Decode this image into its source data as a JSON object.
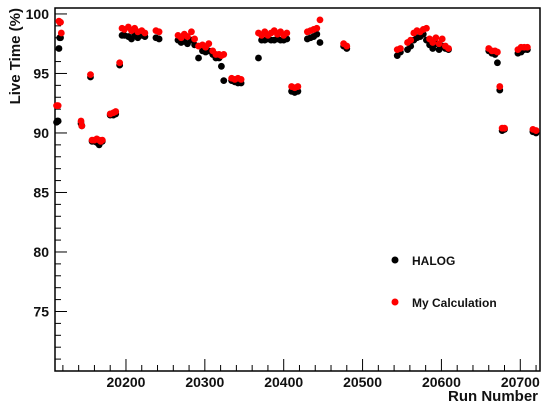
{
  "chart_data": {
    "type": "scatter",
    "title": "",
    "xlabel": "Run Number",
    "ylabel": "Live Time (%)",
    "xlim": [
      20110,
      20725
    ],
    "ylim": [
      70,
      100.5
    ],
    "xticks": [
      20200,
      20300,
      20400,
      20500,
      20600,
      20700
    ],
    "yticks": [
      75,
      80,
      85,
      90,
      95,
      100
    ],
    "grid": false,
    "legend_position": "lower-right",
    "series": [
      {
        "name": "HALOG",
        "color": "#000000",
        "points": [
          [
            20112,
            90.9
          ],
          [
            20113,
            91.0
          ],
          [
            20114,
            91.0
          ],
          [
            20115,
            97.1
          ],
          [
            20116,
            98.0
          ],
          [
            20117,
            98.0
          ],
          [
            20143,
            90.8
          ],
          [
            20144,
            90.6
          ],
          [
            20155,
            94.7
          ],
          [
            20157,
            89.3
          ],
          [
            20160,
            89.3
          ],
          [
            20163,
            89.2
          ],
          [
            20166,
            89.0
          ],
          [
            20168,
            89.3
          ],
          [
            20170,
            89.3
          ],
          [
            20180,
            91.5
          ],
          [
            20184,
            91.5
          ],
          [
            20187,
            91.6
          ],
          [
            20192,
            95.7
          ],
          [
            20195,
            98.2
          ],
          [
            20198,
            98.2
          ],
          [
            20203,
            98.1
          ],
          [
            20207,
            97.9
          ],
          [
            20211,
            98.3
          ],
          [
            20215,
            98.0
          ],
          [
            20220,
            98.2
          ],
          [
            20224,
            98.1
          ],
          [
            20238,
            98.0
          ],
          [
            20242,
            97.9
          ],
          [
            20266,
            97.8
          ],
          [
            20270,
            97.6
          ],
          [
            20274,
            97.7
          ],
          [
            20278,
            97.5
          ],
          [
            20283,
            97.8
          ],
          [
            20287,
            97.4
          ],
          [
            20292,
            96.3
          ],
          [
            20297,
            96.9
          ],
          [
            20301,
            96.8
          ],
          [
            20305,
            96.9
          ],
          [
            20310,
            96.6
          ],
          [
            20314,
            96.3
          ],
          [
            20318,
            96.3
          ],
          [
            20321,
            95.6
          ],
          [
            20324,
            94.4
          ],
          [
            20334,
            94.4
          ],
          [
            20338,
            94.3
          ],
          [
            20342,
            94.2
          ],
          [
            20346,
            94.2
          ],
          [
            20368,
            96.3
          ],
          [
            20372,
            97.8
          ],
          [
            20376,
            97.8
          ],
          [
            20380,
            97.9
          ],
          [
            20384,
            97.8
          ],
          [
            20388,
            97.8
          ],
          [
            20392,
            97.9
          ],
          [
            20396,
            97.8
          ],
          [
            20400,
            97.8
          ],
          [
            20404,
            97.9
          ],
          [
            20410,
            93.5
          ],
          [
            20414,
            93.4
          ],
          [
            20418,
            93.5
          ],
          [
            20430,
            97.9
          ],
          [
            20434,
            98.0
          ],
          [
            20438,
            98.1
          ],
          [
            20442,
            98.3
          ],
          [
            20446,
            97.6
          ],
          [
            20476,
            97.3
          ],
          [
            20480,
            97.1
          ],
          [
            20544,
            96.5
          ],
          [
            20548,
            96.8
          ],
          [
            20557,
            97.0
          ],
          [
            20561,
            97.3
          ],
          [
            20565,
            97.8
          ],
          [
            20569,
            98.0
          ],
          [
            20573,
            98.1
          ],
          [
            20577,
            98.3
          ],
          [
            20581,
            97.8
          ],
          [
            20585,
            97.4
          ],
          [
            20589,
            97.1
          ],
          [
            20593,
            97.5
          ],
          [
            20597,
            97.0
          ],
          [
            20601,
            97.3
          ],
          [
            20605,
            97.1
          ],
          [
            20609,
            97.0
          ],
          [
            20660,
            96.9
          ],
          [
            20664,
            96.7
          ],
          [
            20668,
            96.6
          ],
          [
            20671,
            95.9
          ],
          [
            20674,
            93.6
          ],
          [
            20677,
            90.2
          ],
          [
            20680,
            90.3
          ],
          [
            20697,
            96.7
          ],
          [
            20701,
            96.8
          ],
          [
            20705,
            97.0
          ],
          [
            20709,
            97.0
          ],
          [
            20716,
            90.1
          ],
          [
            20720,
            90.0
          ]
        ]
      },
      {
        "name": "My Calculation",
        "color": "#ff0000",
        "points": [
          [
            20112,
            92.3
          ],
          [
            20113,
            92.3
          ],
          [
            20114,
            92.3
          ],
          [
            20115,
            99.4
          ],
          [
            20116,
            99.3
          ],
          [
            20117,
            99.3
          ],
          [
            20118,
            98.4
          ],
          [
            20143,
            91.0
          ],
          [
            20144,
            90.6
          ],
          [
            20155,
            94.9
          ],
          [
            20157,
            89.4
          ],
          [
            20160,
            89.4
          ],
          [
            20163,
            89.5
          ],
          [
            20166,
            89.4
          ],
          [
            20168,
            89.3
          ],
          [
            20170,
            89.4
          ],
          [
            20180,
            91.6
          ],
          [
            20184,
            91.7
          ],
          [
            20187,
            91.8
          ],
          [
            20192,
            95.9
          ],
          [
            20195,
            98.8
          ],
          [
            20198,
            98.7
          ],
          [
            20203,
            98.9
          ],
          [
            20207,
            98.6
          ],
          [
            20211,
            98.8
          ],
          [
            20215,
            98.5
          ],
          [
            20220,
            98.6
          ],
          [
            20224,
            98.4
          ],
          [
            20238,
            98.6
          ],
          [
            20242,
            98.5
          ],
          [
            20266,
            98.2
          ],
          [
            20270,
            98.0
          ],
          [
            20274,
            98.3
          ],
          [
            20278,
            98.1
          ],
          [
            20283,
            98.5
          ],
          [
            20287,
            97.9
          ],
          [
            20292,
            97.3
          ],
          [
            20297,
            97.4
          ],
          [
            20301,
            97.2
          ],
          [
            20305,
            97.5
          ],
          [
            20310,
            96.9
          ],
          [
            20314,
            96.6
          ],
          [
            20318,
            96.6
          ],
          [
            20321,
            96.5
          ],
          [
            20324,
            96.6
          ],
          [
            20334,
            94.6
          ],
          [
            20338,
            94.5
          ],
          [
            20342,
            94.6
          ],
          [
            20346,
            94.5
          ],
          [
            20368,
            98.4
          ],
          [
            20372,
            98.2
          ],
          [
            20376,
            98.5
          ],
          [
            20380,
            98.2
          ],
          [
            20384,
            98.4
          ],
          [
            20388,
            98.6
          ],
          [
            20392,
            98.3
          ],
          [
            20396,
            98.5
          ],
          [
            20400,
            98.2
          ],
          [
            20404,
            98.4
          ],
          [
            20410,
            93.9
          ],
          [
            20414,
            93.8
          ],
          [
            20418,
            93.9
          ],
          [
            20430,
            98.5
          ],
          [
            20434,
            98.6
          ],
          [
            20438,
            98.7
          ],
          [
            20442,
            98.8
          ],
          [
            20446,
            99.5
          ],
          [
            20476,
            97.5
          ],
          [
            20480,
            97.3
          ],
          [
            20544,
            97.0
          ],
          [
            20548,
            97.1
          ],
          [
            20557,
            97.6
          ],
          [
            20561,
            97.8
          ],
          [
            20565,
            98.4
          ],
          [
            20569,
            98.6
          ],
          [
            20573,
            98.5
          ],
          [
            20577,
            98.7
          ],
          [
            20581,
            98.8
          ],
          [
            20585,
            97.9
          ],
          [
            20589,
            97.6
          ],
          [
            20593,
            98.0
          ],
          [
            20597,
            97.5
          ],
          [
            20601,
            97.9
          ],
          [
            20605,
            97.3
          ],
          [
            20609,
            97.1
          ],
          [
            20660,
            97.1
          ],
          [
            20664,
            96.9
          ],
          [
            20668,
            96.9
          ],
          [
            20671,
            96.8
          ],
          [
            20674,
            93.9
          ],
          [
            20677,
            90.4
          ],
          [
            20680,
            90.4
          ],
          [
            20697,
            97.0
          ],
          [
            20701,
            97.2
          ],
          [
            20705,
            97.2
          ],
          [
            20709,
            97.2
          ],
          [
            20716,
            90.3
          ],
          [
            20720,
            90.2
          ]
        ]
      }
    ]
  }
}
